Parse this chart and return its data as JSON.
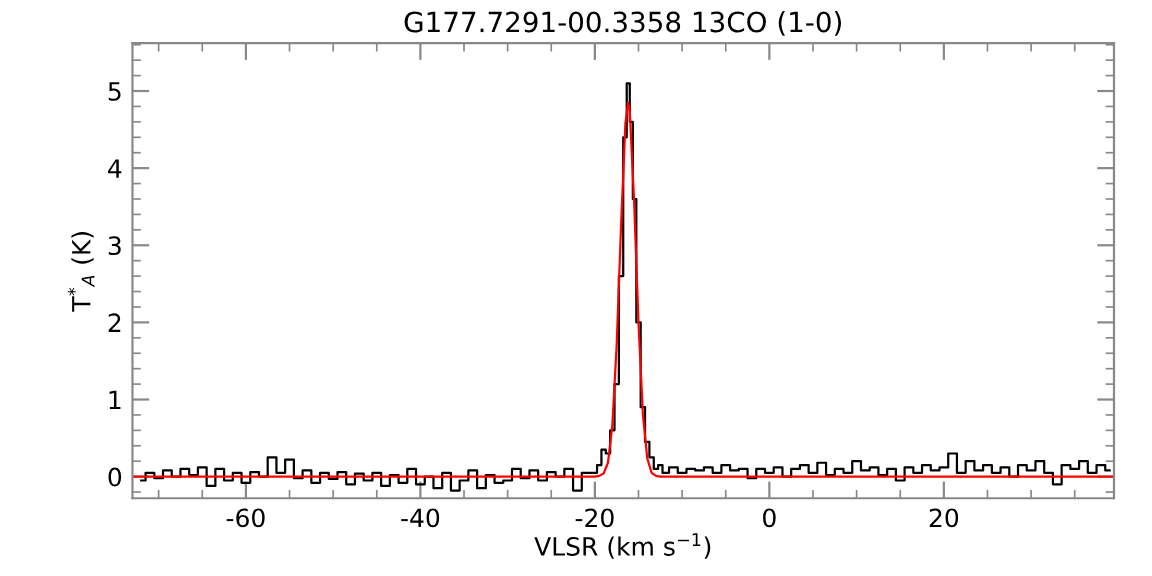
{
  "chart_data": {
    "type": "line",
    "title": "G177.7291-00.3358 13CO (1-0)",
    "xlabel": "VLSR (km s$^{−1}$)",
    "ylabel": "T$^{*}$$_{A}$ (K)",
    "xlim": [
      -73,
      39.5
    ],
    "ylim": [
      -0.28,
      5.62
    ],
    "xticks": [
      -60,
      -40,
      -20,
      0,
      20
    ],
    "yticks": [
      0,
      1,
      2,
      3,
      4,
      5
    ],
    "grid": false,
    "legend": false,
    "series": [
      {
        "type": "step",
        "color": "#000000",
        "x": [
          -72,
          -71,
          -70,
          -69,
          -68,
          -67,
          -66,
          -65,
          -64,
          -63,
          -62,
          -61,
          -60,
          -59,
          -58,
          -57,
          -56,
          -55,
          -54,
          -53,
          -52,
          -51,
          -50,
          -49,
          -48,
          -47,
          -46,
          -45,
          -44,
          -43,
          -42,
          -41,
          -40,
          -39,
          -38,
          -37,
          -36,
          -35,
          -34,
          -33,
          -32,
          -31,
          -30,
          -29,
          -28,
          -27,
          -26,
          -25,
          -24,
          -23,
          -22,
          -21,
          -20,
          -19.5,
          -19,
          -18.5,
          -18,
          -17.5,
          -17,
          -16.5,
          -16.2,
          -15.8,
          -15.5,
          -15,
          -14.5,
          -14,
          -13.5,
          -13,
          -12.5,
          -12,
          -11,
          -10,
          -9,
          -8,
          -7,
          -6,
          -5,
          -4,
          -3,
          -2,
          -1,
          0,
          1,
          2,
          3,
          4,
          5,
          6,
          7,
          8,
          9,
          10,
          11,
          12,
          13,
          14,
          15,
          16,
          17,
          18,
          19,
          20,
          21,
          22,
          23,
          24,
          25,
          26,
          27,
          28,
          29,
          30,
          31,
          32,
          33,
          34,
          35,
          36,
          37,
          38,
          39
        ],
        "values": [
          -0.05,
          0.05,
          -0.02,
          0.08,
          0.0,
          0.1,
          0.02,
          0.12,
          -0.12,
          0.1,
          -0.05,
          0.05,
          -0.08,
          0.06,
          0.0,
          0.25,
          0.05,
          0.22,
          -0.02,
          0.08,
          -0.08,
          0.05,
          -0.03,
          0.06,
          -0.1,
          0.04,
          -0.05,
          0.05,
          -0.12,
          0.02,
          -0.08,
          0.1,
          -0.1,
          0.0,
          -0.15,
          0.05,
          -0.18,
          -0.05,
          0.08,
          -0.15,
          0.02,
          -0.08,
          -0.05,
          0.1,
          -0.02,
          0.08,
          -0.05,
          0.06,
          0.0,
          0.1,
          -0.18,
          0.05,
          0.05,
          0.15,
          0.35,
          0.3,
          0.6,
          1.2,
          2.6,
          4.4,
          5.1,
          4.6,
          3.6,
          2.0,
          0.9,
          0.45,
          0.25,
          0.1,
          0.15,
          0.05,
          0.12,
          0.05,
          0.1,
          0.08,
          0.12,
          0.05,
          0.15,
          0.08,
          0.1,
          -0.02,
          0.1,
          0.05,
          0.12,
          0.0,
          0.1,
          0.15,
          0.05,
          0.18,
          0.02,
          0.1,
          0.05,
          0.2,
          0.08,
          0.12,
          0.02,
          0.1,
          -0.05,
          0.12,
          0.05,
          0.15,
          0.08,
          0.12,
          0.3,
          0.05,
          0.2,
          0.08,
          0.15,
          0.05,
          0.12,
          0.0,
          0.15,
          0.08,
          0.2,
          0.05,
          -0.1,
          0.15,
          0.1,
          0.2,
          0.05,
          0.15,
          0.08
        ]
      },
      {
        "color": "#ff0000",
        "x": [
          -73,
          -20,
          -19.5,
          -19,
          -18.5,
          -18,
          -17.5,
          -17,
          -16.5,
          -16.2,
          -16,
          -15.5,
          -15,
          -14.5,
          -14,
          -13.5,
          -13,
          -12.5,
          39.5
        ],
        "values": [
          0.0,
          0.0,
          0.01,
          0.04,
          0.18,
          0.66,
          1.71,
          3.25,
          4.58,
          4.85,
          4.74,
          3.56,
          1.99,
          0.81,
          0.24,
          0.05,
          0.01,
          0.0,
          0.0
        ]
      }
    ]
  }
}
